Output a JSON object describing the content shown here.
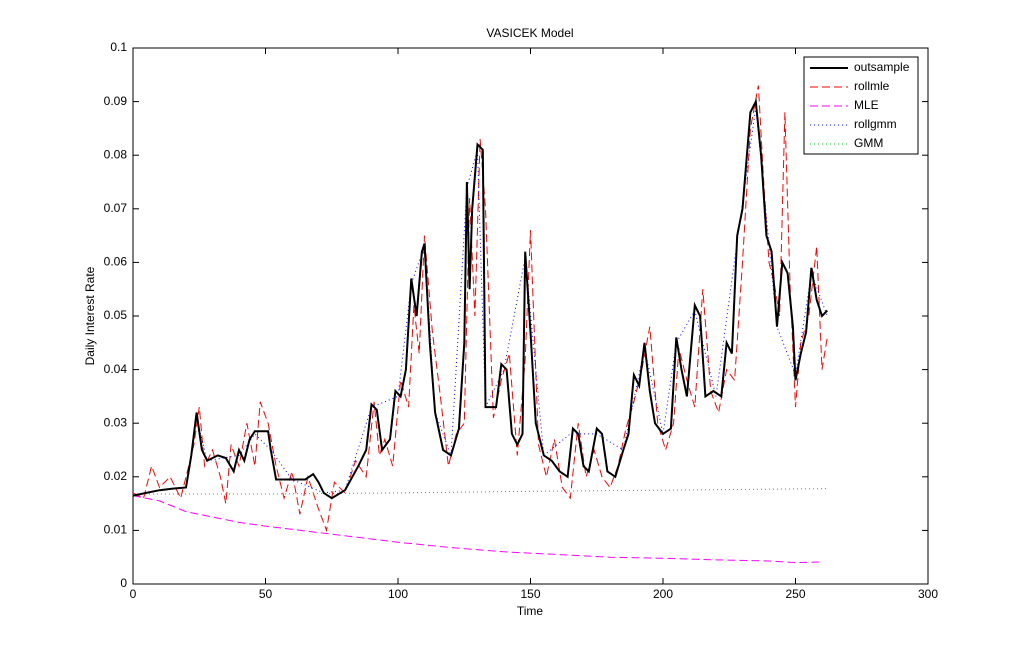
{
  "chart_data": {
    "type": "line",
    "title": "VASICEK Model",
    "xlabel": "Time",
    "ylabel": "Daily Interest Rate",
    "xlim": [
      0,
      300
    ],
    "xticks": [
      0,
      50,
      100,
      150,
      200,
      250,
      300
    ],
    "ylim": [
      0,
      0.1
    ],
    "yticks": [
      0,
      0.01,
      0.02,
      0.03,
      0.04,
      0.05,
      0.06,
      0.07,
      0.08,
      0.09,
      0.1
    ],
    "legend": "upper right",
    "series": [
      {
        "name": "outsample",
        "color": "#000000",
        "dash": "solid",
        "x": [
          0,
          5,
          10,
          15,
          20,
          22,
          24,
          26,
          28,
          32,
          35,
          38,
          40,
          42,
          44,
          46,
          50,
          51,
          52,
          54,
          60,
          65,
          68,
          70,
          72,
          75,
          80,
          85,
          88,
          90,
          92,
          94,
          97,
          99,
          101,
          103,
          105,
          107,
          109,
          110,
          112,
          114,
          117,
          120,
          123,
          125,
          126,
          127,
          128,
          130,
          132,
          133,
          137,
          139,
          141,
          143,
          145,
          147,
          148,
          150,
          152,
          155,
          158,
          161,
          164,
          166,
          168,
          170,
          172,
          175,
          177,
          179,
          182,
          185,
          187,
          189,
          191,
          193,
          195,
          197,
          200,
          203,
          205,
          207,
          209,
          212,
          214,
          216,
          219,
          222,
          224,
          226,
          228,
          230,
          233,
          235,
          237,
          239,
          241,
          243,
          245,
          247,
          249,
          250,
          252,
          254,
          256,
          258,
          260,
          262
        ],
        "values": [
          0.0165,
          0.017,
          0.0175,
          0.0178,
          0.018,
          0.024,
          0.032,
          0.025,
          0.023,
          0.024,
          0.0235,
          0.021,
          0.025,
          0.023,
          0.027,
          0.0285,
          0.0285,
          0.0285,
          0.025,
          0.0195,
          0.0195,
          0.0195,
          0.0205,
          0.019,
          0.017,
          0.016,
          0.0175,
          0.022,
          0.025,
          0.0335,
          0.0325,
          0.025,
          0.027,
          0.036,
          0.035,
          0.04,
          0.057,
          0.05,
          0.062,
          0.0635,
          0.045,
          0.032,
          0.025,
          0.024,
          0.029,
          0.045,
          0.075,
          0.055,
          0.07,
          0.082,
          0.081,
          0.033,
          0.033,
          0.041,
          0.04,
          0.028,
          0.026,
          0.028,
          0.062,
          0.047,
          0.03,
          0.024,
          0.023,
          0.021,
          0.02,
          0.029,
          0.028,
          0.022,
          0.021,
          0.029,
          0.028,
          0.021,
          0.02,
          0.025,
          0.028,
          0.039,
          0.037,
          0.045,
          0.036,
          0.03,
          0.028,
          0.029,
          0.046,
          0.04,
          0.035,
          0.052,
          0.05,
          0.035,
          0.036,
          0.035,
          0.045,
          0.043,
          0.065,
          0.07,
          0.088,
          0.09,
          0.08,
          0.065,
          0.062,
          0.048,
          0.06,
          0.058,
          0.048,
          0.038,
          0.043,
          0.047,
          0.059,
          0.053,
          0.05,
          0.051
        ]
      },
      {
        "name": "rollmle",
        "color": "#ff0000",
        "dash": "8,4",
        "x": [
          0,
          4,
          7,
          10,
          14,
          18,
          21,
          23,
          25,
          27,
          30,
          33,
          35,
          37,
          40,
          43,
          46,
          48,
          51,
          54,
          57,
          60,
          63,
          66,
          70,
          73,
          76,
          80,
          84,
          88,
          91,
          93,
          95,
          98,
          101,
          104,
          106,
          108,
          110,
          113,
          116,
          119,
          122,
          125,
          127,
          129,
          131,
          133,
          136,
          139,
          142,
          145,
          148,
          150,
          153,
          156,
          159,
          162,
          165,
          168,
          171,
          174,
          177,
          180,
          183,
          186,
          189,
          192,
          195,
          198,
          201,
          204,
          206,
          209,
          212,
          215,
          218,
          221,
          224,
          227,
          230,
          233,
          236,
          238,
          240,
          242,
          244,
          246,
          248,
          250,
          252,
          255,
          258,
          260,
          262
        ],
        "values": [
          0.017,
          0.016,
          0.022,
          0.018,
          0.02,
          0.016,
          0.022,
          0.026,
          0.033,
          0.022,
          0.025,
          0.02,
          0.015,
          0.026,
          0.022,
          0.03,
          0.022,
          0.034,
          0.03,
          0.022,
          0.016,
          0.021,
          0.013,
          0.02,
          0.014,
          0.01,
          0.019,
          0.017,
          0.023,
          0.02,
          0.034,
          0.024,
          0.027,
          0.022,
          0.038,
          0.033,
          0.052,
          0.043,
          0.065,
          0.047,
          0.035,
          0.022,
          0.028,
          0.03,
          0.072,
          0.05,
          0.083,
          0.07,
          0.031,
          0.038,
          0.043,
          0.024,
          0.042,
          0.066,
          0.026,
          0.02,
          0.027,
          0.018,
          0.016,
          0.03,
          0.02,
          0.025,
          0.02,
          0.018,
          0.022,
          0.029,
          0.034,
          0.04,
          0.048,
          0.03,
          0.025,
          0.03,
          0.044,
          0.038,
          0.033,
          0.055,
          0.036,
          0.032,
          0.04,
          0.038,
          0.06,
          0.085,
          0.093,
          0.075,
          0.06,
          0.056,
          0.05,
          0.088,
          0.055,
          0.033,
          0.045,
          0.05,
          0.063,
          0.04,
          0.046
        ]
      },
      {
        "name": "MLE",
        "color": "#ff00ff",
        "dash": "8,4",
        "x": [
          0,
          10,
          20,
          30,
          40,
          50,
          60,
          80,
          100,
          120,
          140,
          160,
          180,
          200,
          220,
          240,
          250,
          260
        ],
        "values": [
          0.0165,
          0.0155,
          0.0135,
          0.0125,
          0.0115,
          0.0108,
          0.0102,
          0.009,
          0.0078,
          0.0068,
          0.006,
          0.0055,
          0.005,
          0.0048,
          0.0045,
          0.0043,
          0.004,
          0.0041
        ]
      },
      {
        "name": "rollgmm",
        "color": "#0000ff",
        "dash": "1,3",
        "x": [
          0,
          10,
          20,
          24,
          28,
          40,
          46,
          52,
          60,
          72,
          80,
          90,
          100,
          105,
          110,
          114,
          120,
          126,
          130,
          133,
          140,
          148,
          155,
          165,
          175,
          185,
          193,
          200,
          205,
          212,
          220,
          228,
          235,
          243,
          250,
          256,
          262
        ],
        "values": [
          0.0165,
          0.0175,
          0.018,
          0.031,
          0.023,
          0.024,
          0.028,
          0.025,
          0.0195,
          0.017,
          0.0175,
          0.033,
          0.035,
          0.056,
          0.063,
          0.032,
          0.024,
          0.074,
          0.081,
          0.033,
          0.04,
          0.061,
          0.024,
          0.028,
          0.028,
          0.025,
          0.044,
          0.028,
          0.045,
          0.051,
          0.035,
          0.064,
          0.089,
          0.048,
          0.039,
          0.058,
          0.05
        ]
      },
      {
        "name": "GMM",
        "color": "#00cc00",
        "dash": "1,3",
        "x": [
          0,
          50,
          100,
          150,
          200,
          262
        ],
        "values": [
          0.0168,
          0.0168,
          0.017,
          0.0173,
          0.0175,
          0.0178
        ]
      }
    ]
  }
}
